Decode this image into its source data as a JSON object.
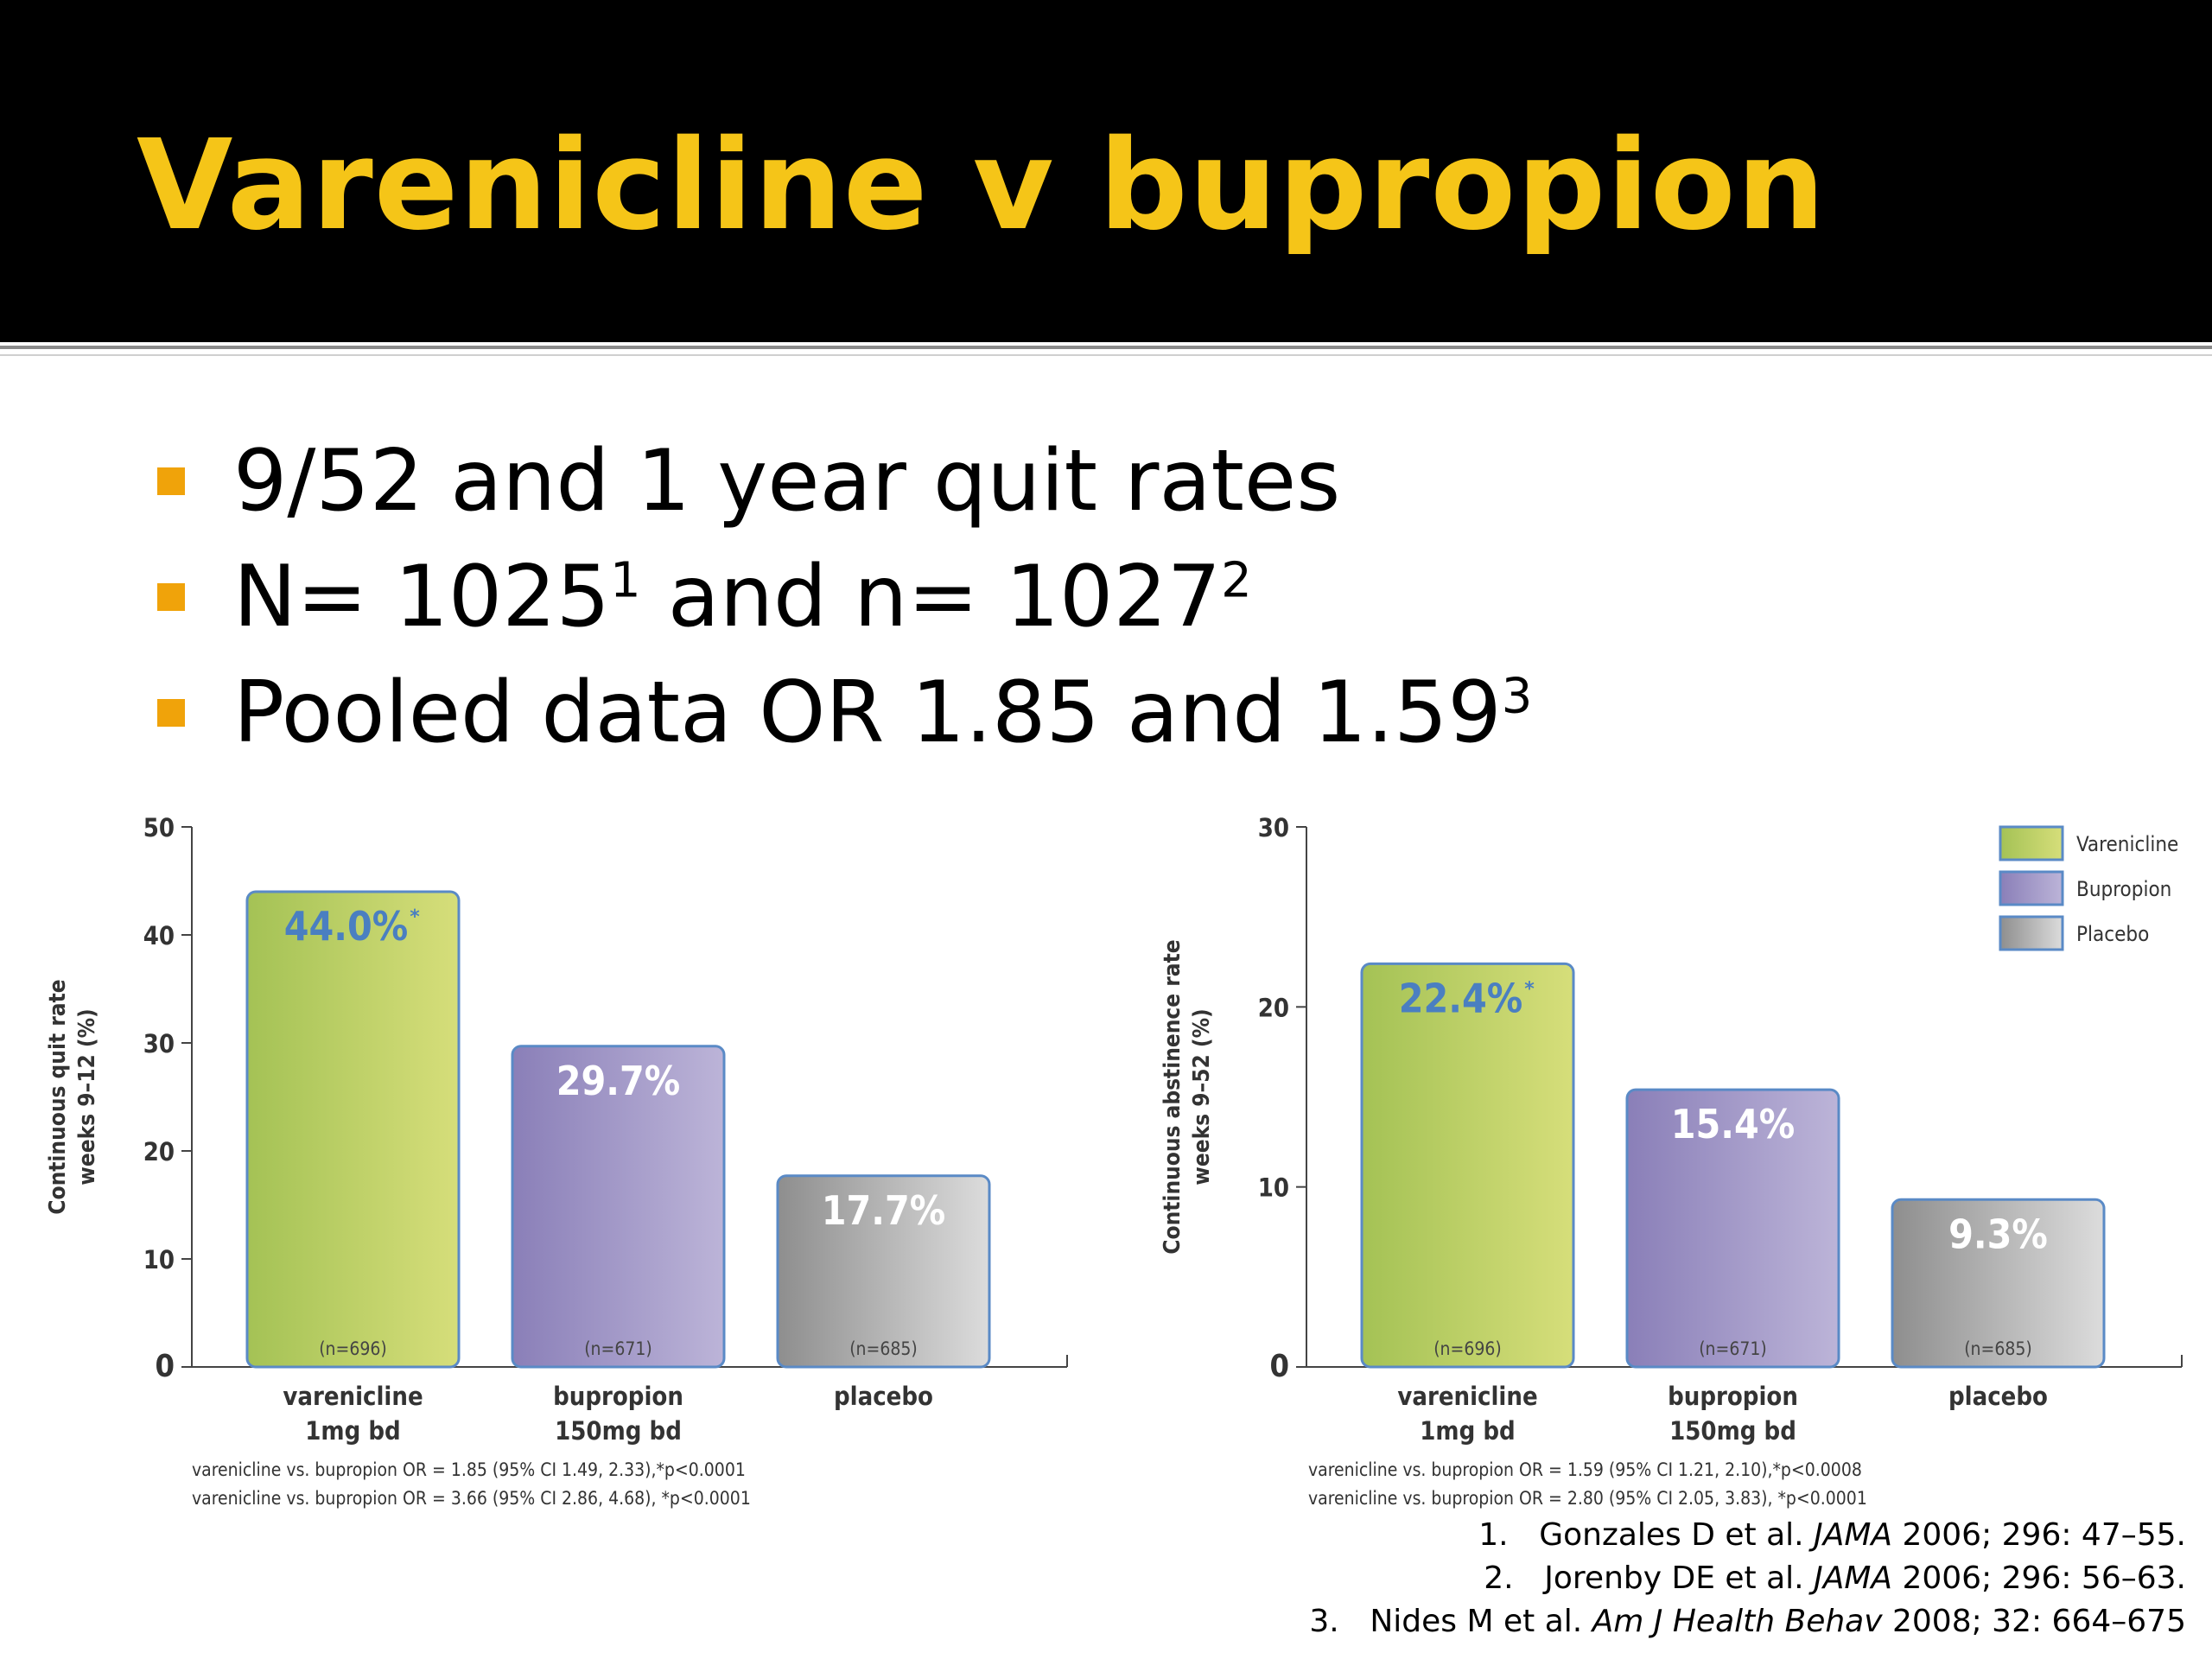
{
  "slide": {
    "title": "Varenicline v bupropion",
    "bullets": [
      {
        "text": "9/52 and 1 year quit rates",
        "sup": ""
      },
      {
        "text": "N= 1025",
        "sup": "1",
        "text2": " and n= 1027",
        "sup2": "2"
      },
      {
        "text": "Pooled data OR 1.85 and 1.59",
        "sup": "3"
      }
    ],
    "references": [
      {
        "num": "1.",
        "pre": "Gonzales D et al. ",
        "journal": "JAMA",
        "post": " 2006; 296: 47–55."
      },
      {
        "num": "2.",
        "pre": "Jorenby DE et al. ",
        "journal": "JAMA",
        "post": " 2006; 296: 56–63."
      },
      {
        "num": "3.",
        "pre": "Nides M et al. ",
        "journal": "Am J Health Behav",
        "post": " 2008; 32: 664–675"
      }
    ],
    "colors": {
      "header_bg": "#000000",
      "title": "#f5c518",
      "bullet": "#f0a30a"
    }
  },
  "chart_data": [
    {
      "type": "bar",
      "ylabel": "Continuous quit rate weeks 9–12 (%)",
      "ylim": [
        0,
        50
      ],
      "yticks": [
        0,
        10,
        20,
        30,
        40,
        50
      ],
      "categories": [
        "varenicline 1mg bd",
        "bupropion 150mg bd",
        "placebo"
      ],
      "category_lines": [
        [
          "varenicline",
          "1mg bd"
        ],
        [
          "bupropion",
          "150mg bd"
        ],
        [
          "placebo",
          ""
        ]
      ],
      "values": [
        44.0,
        29.7,
        17.7
      ],
      "value_labels": [
        "44.0%",
        "29.7%",
        "17.7%"
      ],
      "significance": [
        "*",
        "",
        ""
      ],
      "n_labels": [
        "(n=696)",
        "(n=671)",
        "(n=685)"
      ],
      "footnotes": [
        "varenicline vs. bupropion OR = 1.85 (95% CI 1.49, 2.33),*p<0.0001",
        "varenicline vs. bupropion OR = 3.66 (95% CI 2.86, 4.68), *p<0.0001"
      ],
      "legend": []
    },
    {
      "type": "bar",
      "ylabel": "Continuous abstinence rate weeks 9–52 (%)",
      "ylim": [
        0,
        30
      ],
      "yticks": [
        0,
        10,
        20,
        30
      ],
      "categories": [
        "varenicline 1mg bd",
        "bupropion 150mg bd",
        "placebo"
      ],
      "category_lines": [
        [
          "varenicline",
          "1mg bd"
        ],
        [
          "bupropion",
          "150mg bd"
        ],
        [
          "placebo",
          ""
        ]
      ],
      "values": [
        22.4,
        15.4,
        9.3
      ],
      "value_labels": [
        "22.4%",
        "15.4%",
        "9.3%"
      ],
      "significance": [
        "*",
        "",
        ""
      ],
      "n_labels": [
        "(n=696)",
        "(n=671)",
        "(n=685)"
      ],
      "footnotes": [
        "varenicline vs. bupropion OR = 1.59 (95% CI 1.21, 2.10),*p<0.0008",
        "varenicline vs. bupropion OR = 2.80 (95% CI 2.05, 3.83), *p<0.0001"
      ],
      "legend": [
        "Varenicline",
        "Bupropion",
        "Placebo"
      ],
      "legend_position": "top-right"
    }
  ],
  "series_colors": {
    "varenicline": [
      "#a4c255",
      "#d6de7a"
    ],
    "bupropion": [
      "#8a7fb8",
      "#bcb4d8"
    ],
    "placebo": [
      "#8e8e8e",
      "#dcdcdc"
    ],
    "bar_stroke": "#5a8ac6",
    "highlight_label": "#4a7fc1"
  }
}
